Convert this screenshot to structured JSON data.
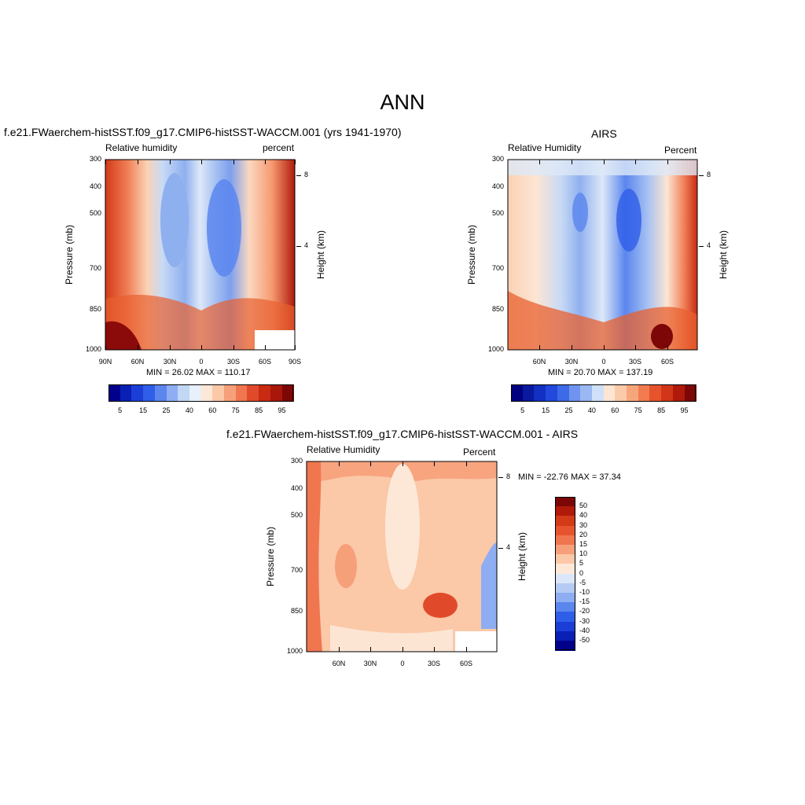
{
  "main_title": "ANN",
  "palette": {
    "p1": [
      "#00008b",
      "#0a1fb5",
      "#1b3fd6",
      "#2f5ee8",
      "#5a86ee",
      "#8eadf2",
      "#c2d6f5",
      "#e7f0fb",
      "#fde8d8",
      "#fbc8a8",
      "#f6a07a",
      "#f07650",
      "#e04a2a",
      "#c82a12",
      "#a8170a",
      "#7d0707"
    ],
    "p2": [
      "#000080",
      "#0a1a9e",
      "#1230c2",
      "#2248dc",
      "#3d6ae6",
      "#6f93ee",
      "#9bb8f2",
      "#cfe0f8",
      "#fde5d3",
      "#fbcaa8",
      "#f7a67c",
      "#f27c4f",
      "#e6542d",
      "#d2361a",
      "#b01a0a",
      "#7d0707"
    ]
  },
  "chart_data": [
    {
      "type": "heatmap",
      "title": "f.e21.FWaerchem-histSST.f09_g17.CMIP6-histSST-WACCM.001 (yrs 1941-1970)",
      "left_label": "Relative humidity",
      "right_label": "percent",
      "ylabel": "Pressure (mb)",
      "ylabel_right": "Height (km)",
      "y_ticks": [
        "300",
        "400",
        "500",
        "700",
        "850",
        "1000"
      ],
      "y_right_ticks": [
        "8",
        "4"
      ],
      "x_ticks": [
        "90N",
        "60N",
        "30N",
        "0",
        "30S",
        "60S",
        "90S"
      ],
      "stats": "MIN =  26.02  MAX = 110.17",
      "colorbar_labels": [
        "5",
        "15",
        "25",
        "40",
        "60",
        "75",
        "85",
        "95"
      ]
    },
    {
      "type": "heatmap",
      "title": "AIRS",
      "left_label": "Relative Humidity",
      "right_label": "Percent",
      "ylabel": "Pressure (mb)",
      "ylabel_right": "Height (km)",
      "y_ticks": [
        "300",
        "400",
        "500",
        "700",
        "850",
        "1000"
      ],
      "y_right_ticks": [
        "8",
        "4"
      ],
      "x_ticks": [
        "60N",
        "30N",
        "0",
        "30S",
        "60S"
      ],
      "stats": "MIN =  20.70  MAX = 137.19",
      "colorbar_labels": [
        "5",
        "15",
        "25",
        "40",
        "60",
        "75",
        "85",
        "95"
      ]
    },
    {
      "type": "heatmap",
      "title": "f.e21.FWaerchem-histSST.f09_g17.CMIP6-histSST-WACCM.001 - AIRS",
      "left_label": "Relative Humidity",
      "right_label": "Percent",
      "ylabel": "Pressure (mb)",
      "ylabel_right": "Height (km)",
      "y_ticks": [
        "300",
        "400",
        "500",
        "700",
        "850",
        "1000"
      ],
      "y_right_ticks": [
        "8",
        "4"
      ],
      "x_ticks": [
        "60N",
        "30N",
        "0",
        "30S",
        "60S"
      ],
      "stats": "MIN = -22.76  MAX =  37.34",
      "colorbar_labels": [
        "50",
        "40",
        "30",
        "20",
        "15",
        "10",
        "5",
        "0",
        "-5",
        "-10",
        "-15",
        "-20",
        "-30",
        "-40",
        "-50"
      ]
    }
  ]
}
